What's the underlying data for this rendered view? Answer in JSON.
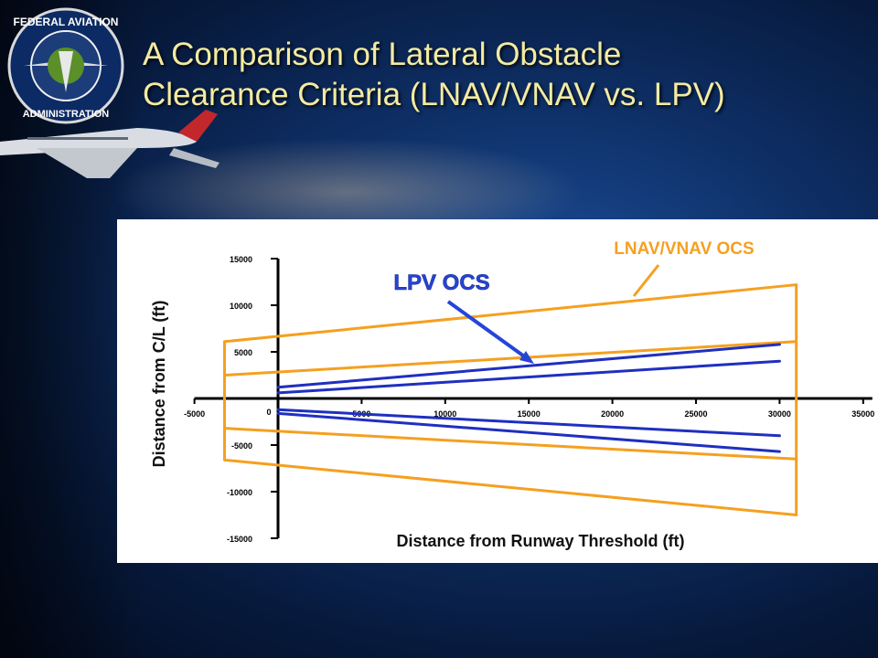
{
  "slide": {
    "title_line1": "A Comparison of Lateral Obstacle",
    "title_line2": "Clearance Criteria (LNAV/VNAV vs. LPV)",
    "logo_icon": "faa-seal-icon",
    "logo_text": "FEDERAL AVIATION ADMINISTRATION"
  },
  "colors": {
    "title": "#f4eba2",
    "lnav_vnav": "#f5a020",
    "lpv": "#1f2fc0",
    "axis": "#000000",
    "lpv_label": "#2545d8",
    "lnav_label": "#f5a020"
  },
  "chart_data": {
    "type": "line",
    "title": "",
    "xlabel": "Distance from Runway Threshold (ft)",
    "ylabel": "Distance from C/L (ft)",
    "xlim": [
      -5000,
      35000
    ],
    "ylim": [
      -15000,
      15000
    ],
    "xticks": [
      -5000,
      0,
      5000,
      10000,
      15000,
      20000,
      25000,
      30000,
      35000
    ],
    "xtick_labels": [
      "-5000",
      "0",
      "5000",
      "10000",
      "15000",
      "20000",
      "25000",
      "30000",
      "35000"
    ],
    "yticks": [
      15000,
      10000,
      5000,
      -5000,
      -10000,
      -15000
    ],
    "ytick_labels": [
      "15000",
      "10000",
      "5000",
      "-5000",
      "-10000",
      "-15000"
    ],
    "grid": false,
    "series": [
      {
        "name": "LNAV/VNAV OCS",
        "lines": [
          [
            [
              -3200,
              6100
            ],
            [
              31000,
              12200
            ]
          ],
          [
            [
              -3200,
              2500
            ],
            [
              31000,
              6100
            ]
          ],
          [
            [
              -3200,
              -3200
            ],
            [
              31000,
              -6500
            ]
          ],
          [
            [
              -3200,
              -6600
            ],
            [
              31000,
              -12500
            ]
          ]
        ],
        "verticals": [
          [
            -3200,
            6100,
            -6600
          ],
          [
            31000,
            12200,
            -12500
          ]
        ]
      },
      {
        "name": "LPV OCS",
        "lines": [
          [
            [
              0,
              1200
            ],
            [
              30000,
              5800
            ]
          ],
          [
            [
              0,
              600
            ],
            [
              30000,
              4000
            ]
          ],
          [
            [
              0,
              -1200
            ],
            [
              30000,
              -4000
            ]
          ],
          [
            [
              0,
              -1600
            ],
            [
              30000,
              -5700
            ]
          ]
        ]
      }
    ],
    "annotations": [
      {
        "text": "LNAV/VNAV OCS",
        "arrow": "pointing to upper LNAV/VNAV boundary"
      },
      {
        "text": "LPV OCS",
        "arrow": "pointing to upper LPV boundary"
      }
    ]
  }
}
